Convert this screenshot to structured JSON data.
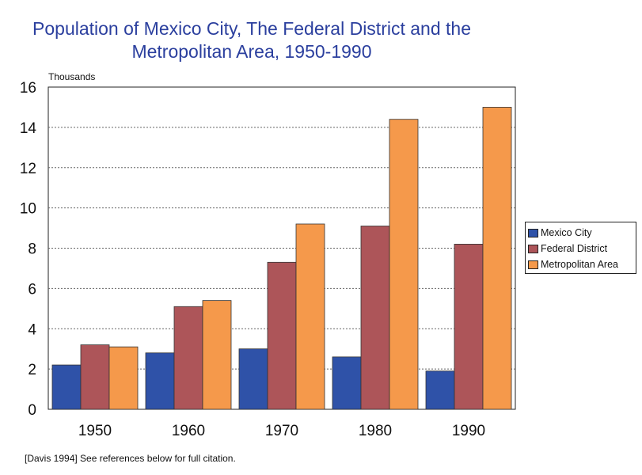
{
  "chart_data": {
    "type": "bar",
    "title": "Population of Mexico City, The Federal District and the Metropolitan Area, 1950-1990",
    "title_lines": [
      "Population of Mexico City, The Federal District and the",
      "Metropolitan Area, 1950-1990"
    ],
    "unit_label": "Thousands",
    "xlabel": "",
    "ylabel": "",
    "categories": [
      "1950",
      "1960",
      "1970",
      "1980",
      "1990"
    ],
    "series": [
      {
        "name": "Mexico City",
        "color": "#2f52a8",
        "values": [
          2.2,
          2.8,
          3.0,
          2.6,
          1.9
        ]
      },
      {
        "name": "Federal District",
        "color": "#ad5559",
        "values": [
          3.2,
          5.1,
          7.3,
          9.1,
          8.2
        ]
      },
      {
        "name": "Metropolitan Area",
        "color": "#f5994b",
        "values": [
          3.1,
          5.4,
          9.2,
          14.4,
          15.0
        ]
      }
    ],
    "ylim": [
      0,
      16
    ],
    "yticks": [
      "0",
      "2",
      "4",
      "6",
      "8",
      "10",
      "12",
      "14",
      "16"
    ],
    "grid": true,
    "legend_position": "right"
  },
  "citation": "[Davis 1994] See references below for full citation."
}
